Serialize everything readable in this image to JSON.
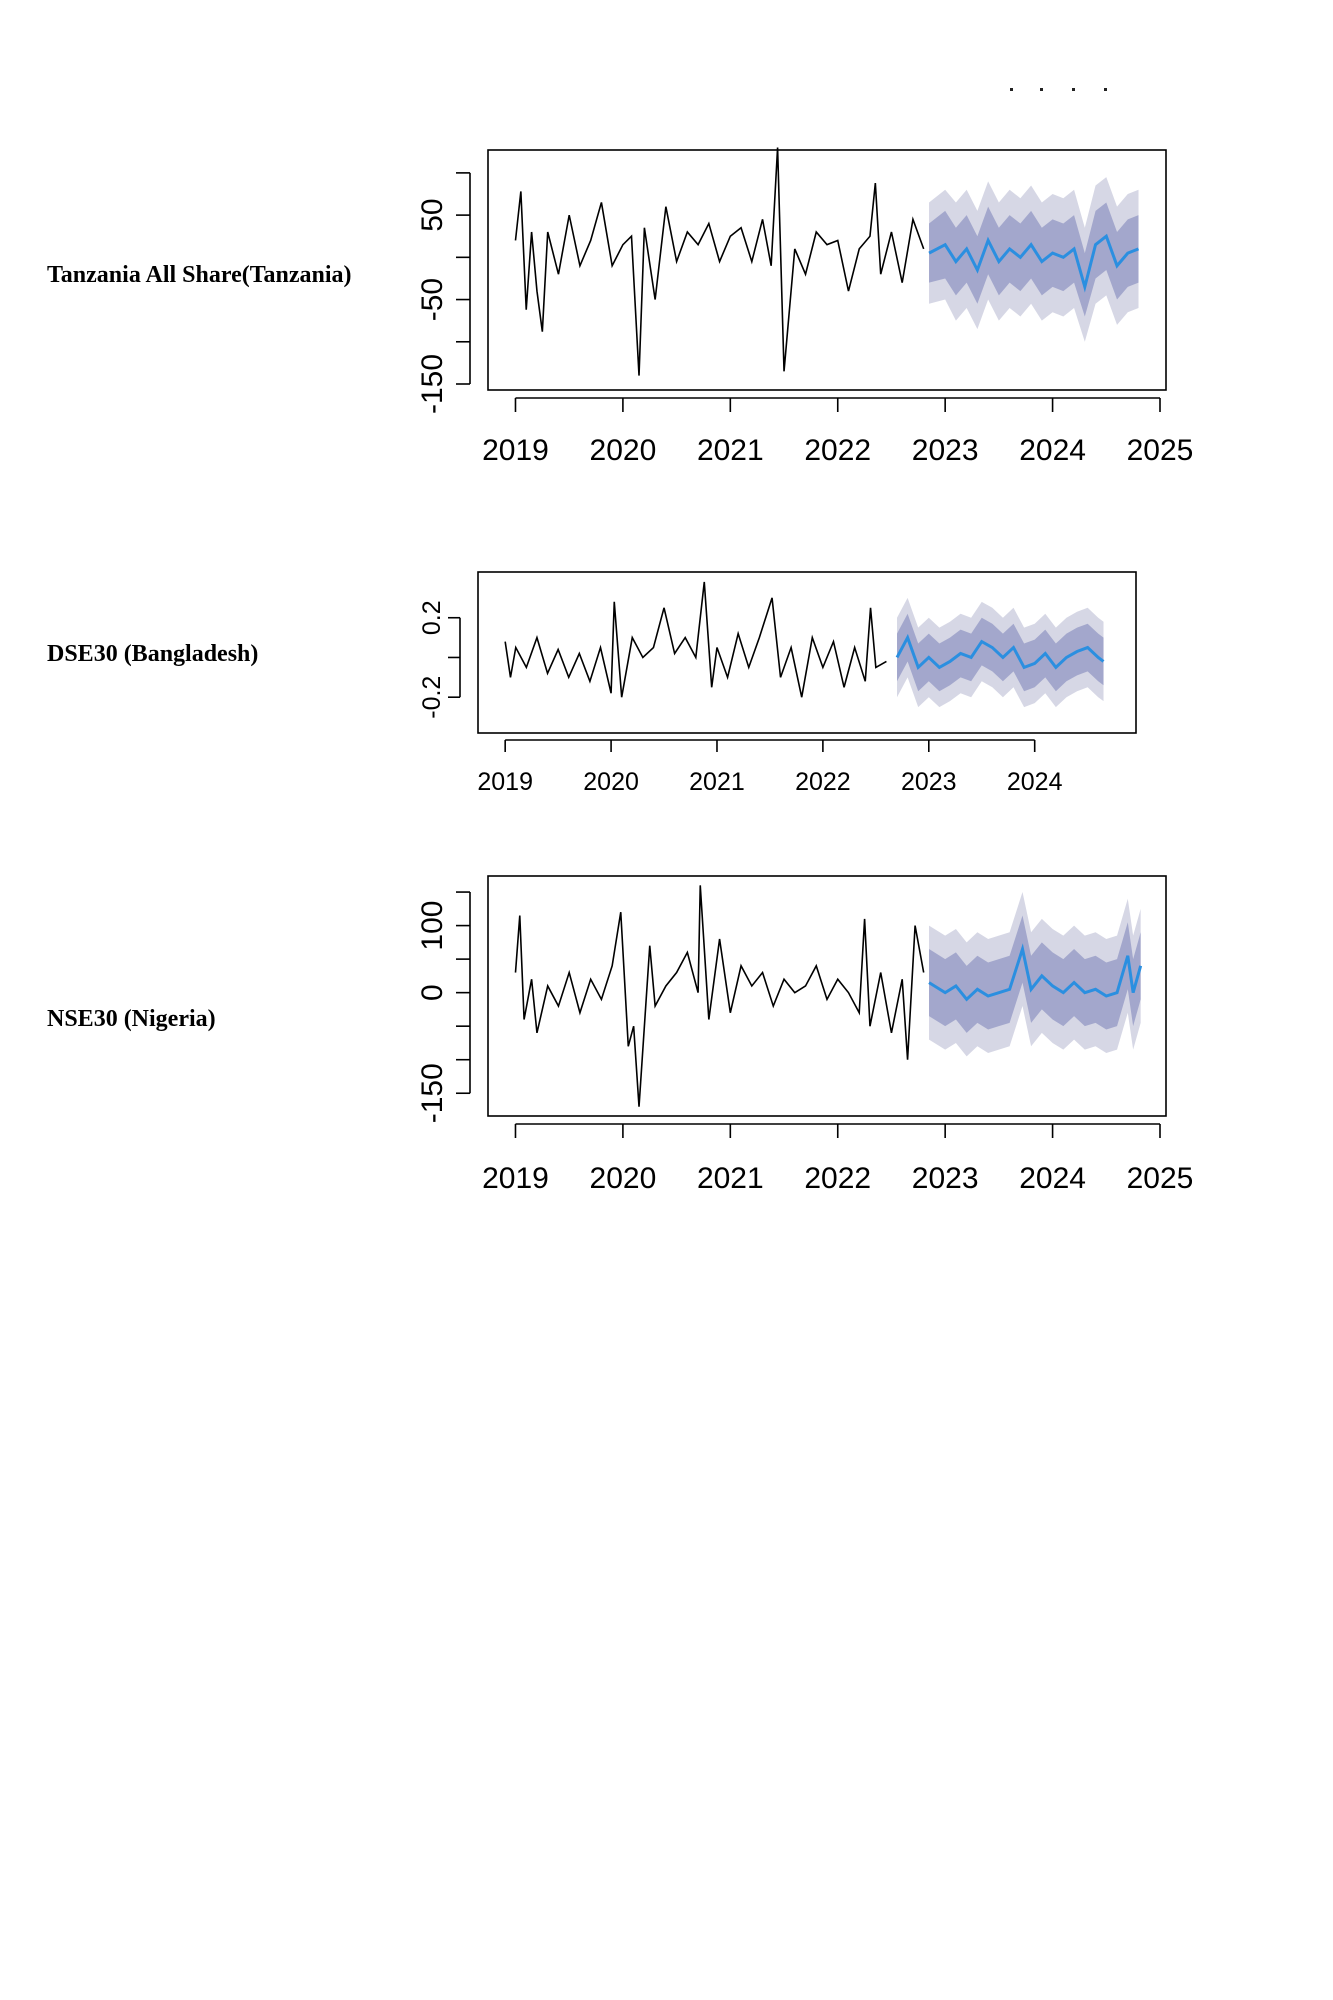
{
  "colors": {
    "history": "#000000",
    "forecast": "#2b8fe0",
    "band80": "#a3a7cc",
    "band95": "#d6d7e5"
  },
  "labels": {
    "tanzania": "Tanzania All Share(Tanzania)",
    "bangladesh": "DSE30 (Bangladesh)",
    "nigeria": "NSE30 (Nigeria)"
  },
  "chart_data": [
    {
      "type": "line",
      "title": "",
      "xlim": [
        2018.8,
        2025.0
      ],
      "ylim": [
        -150,
        120
      ],
      "yticks": [
        -150,
        -100,
        -50,
        0,
        50,
        100
      ],
      "ytick_labels": [
        "-150",
        "",
        "-50",
        "",
        "50",
        ""
      ],
      "xticks": [
        2019,
        2020,
        2021,
        2022,
        2023,
        2024,
        2025
      ],
      "xtick_labels": [
        "2019",
        "2020",
        "2021",
        "2022",
        "2023",
        "2024",
        "2025"
      ],
      "history": {
        "x": [
          2019.0,
          2019.05,
          2019.1,
          2019.15,
          2019.2,
          2019.25,
          2019.3,
          2019.35,
          2019.4,
          2019.5,
          2019.6,
          2019.7,
          2019.8,
          2019.9,
          2020.0,
          2020.08,
          2020.15,
          2020.2,
          2020.3,
          2020.4,
          2020.5,
          2020.6,
          2020.7,
          2020.8,
          2020.9,
          2021.0,
          2021.1,
          2021.2,
          2021.3,
          2021.38,
          2021.44,
          2021.5,
          2021.6,
          2021.7,
          2021.8,
          2021.9,
          2022.0,
          2022.1,
          2022.2,
          2022.3,
          2022.35,
          2022.4,
          2022.5,
          2022.6,
          2022.7,
          2022.8
        ],
        "y": [
          20,
          78,
          -62,
          30,
          -40,
          -88,
          30,
          5,
          -20,
          50,
          -10,
          20,
          65,
          -10,
          15,
          25,
          -140,
          35,
          -50,
          60,
          -5,
          30,
          15,
          40,
          -5,
          25,
          35,
          -5,
          45,
          -10,
          130,
          -135,
          10,
          -20,
          30,
          15,
          20,
          -40,
          10,
          25,
          88,
          -20,
          30,
          -30,
          45,
          10
        ]
      },
      "forecast": {
        "x": [
          2022.85,
          2023.0,
          2023.1,
          2023.2,
          2023.3,
          2023.4,
          2023.5,
          2023.6,
          2023.7,
          2023.8,
          2023.9,
          2024.0,
          2024.1,
          2024.2,
          2024.3,
          2024.4,
          2024.5,
          2024.6,
          2024.7,
          2024.8
        ],
        "mean": [
          5,
          15,
          -5,
          10,
          -15,
          20,
          -5,
          10,
          0,
          15,
          -5,
          5,
          0,
          10,
          -35,
          15,
          25,
          -10,
          5,
          10
        ],
        "lo80": [
          -30,
          -25,
          -45,
          -30,
          -55,
          -20,
          -45,
          -30,
          -40,
          -25,
          -45,
          -35,
          -40,
          -30,
          -70,
          -25,
          -15,
          -50,
          -35,
          -30
        ],
        "hi80": [
          40,
          55,
          35,
          50,
          25,
          60,
          35,
          50,
          40,
          55,
          35,
          45,
          40,
          50,
          5,
          55,
          65,
          30,
          45,
          50
        ],
        "lo95": [
          -55,
          -50,
          -75,
          -60,
          -85,
          -50,
          -75,
          -60,
          -70,
          -55,
          -75,
          -65,
          -70,
          -60,
          -100,
          -55,
          -45,
          -80,
          -65,
          -60
        ],
        "hi95": [
          65,
          80,
          65,
          80,
          55,
          90,
          65,
          80,
          70,
          85,
          65,
          75,
          70,
          80,
          35,
          85,
          95,
          60,
          75,
          80
        ]
      }
    },
    {
      "type": "line",
      "title": "",
      "xlim": [
        2018.8,
        2024.9
      ],
      "ylim": [
        -0.35,
        0.4
      ],
      "yticks": [
        -0.2,
        0.0,
        0.2
      ],
      "ytick_labels": [
        "-0.2",
        "",
        "0.2"
      ],
      "xticks": [
        2019,
        2020,
        2021,
        2022,
        2023,
        2024
      ],
      "xtick_labels": [
        "2019",
        "2020",
        "2021",
        "2022",
        "2023",
        "2024"
      ],
      "history": {
        "x": [
          2019.0,
          2019.05,
          2019.1,
          2019.2,
          2019.3,
          2019.4,
          2019.5,
          2019.6,
          2019.7,
          2019.8,
          2019.9,
          2020.0,
          2020.03,
          2020.1,
          2020.2,
          2020.3,
          2020.4,
          2020.5,
          2020.6,
          2020.7,
          2020.8,
          2020.88,
          2020.95,
          2021.0,
          2021.1,
          2021.2,
          2021.3,
          2021.4,
          2021.52,
          2021.6,
          2021.7,
          2021.8,
          2021.9,
          2022.0,
          2022.1,
          2022.2,
          2022.3,
          2022.4,
          2022.45,
          2022.5,
          2022.6
        ],
        "y": [
          0.08,
          -0.1,
          0.05,
          -0.05,
          0.1,
          -0.08,
          0.04,
          -0.1,
          0.02,
          -0.12,
          0.05,
          -0.18,
          0.28,
          -0.2,
          0.1,
          0.0,
          0.05,
          0.25,
          0.02,
          0.1,
          0.0,
          0.38,
          -0.15,
          0.05,
          -0.1,
          0.12,
          -0.05,
          0.1,
          0.3,
          -0.1,
          0.05,
          -0.2,
          0.1,
          -0.05,
          0.08,
          -0.15,
          0.05,
          -0.12,
          0.25,
          -0.05,
          -0.02
        ]
      },
      "forecast": {
        "x": [
          2022.7,
          2022.8,
          2022.9,
          2023.0,
          2023.1,
          2023.2,
          2023.3,
          2023.4,
          2023.5,
          2023.6,
          2023.7,
          2023.8,
          2023.9,
          2024.0,
          2024.1,
          2024.2,
          2024.3,
          2024.4,
          2024.5,
          2024.6,
          2024.65
        ],
        "mean": [
          0.0,
          0.1,
          -0.05,
          0.0,
          -0.05,
          -0.02,
          0.02,
          0.0,
          0.08,
          0.05,
          0.0,
          0.05,
          -0.05,
          -0.03,
          0.02,
          -0.05,
          0.0,
          0.03,
          0.05,
          0.0,
          -0.02
        ],
        "lo80": [
          -0.12,
          -0.02,
          -0.17,
          -0.12,
          -0.17,
          -0.14,
          -0.1,
          -0.12,
          -0.04,
          -0.07,
          -0.12,
          -0.07,
          -0.17,
          -0.15,
          -0.1,
          -0.17,
          -0.12,
          -0.09,
          -0.07,
          -0.12,
          -0.14
        ],
        "hi80": [
          0.12,
          0.22,
          0.07,
          0.12,
          0.07,
          0.1,
          0.14,
          0.12,
          0.2,
          0.17,
          0.12,
          0.17,
          0.07,
          0.09,
          0.14,
          0.07,
          0.12,
          0.15,
          0.17,
          0.12,
          0.1
        ],
        "lo95": [
          -0.2,
          -0.1,
          -0.25,
          -0.2,
          -0.25,
          -0.22,
          -0.18,
          -0.2,
          -0.12,
          -0.15,
          -0.2,
          -0.15,
          -0.25,
          -0.23,
          -0.18,
          -0.25,
          -0.2,
          -0.17,
          -0.15,
          -0.2,
          -0.22
        ],
        "hi95": [
          0.2,
          0.3,
          0.15,
          0.2,
          0.15,
          0.18,
          0.22,
          0.2,
          0.28,
          0.25,
          0.2,
          0.25,
          0.15,
          0.17,
          0.22,
          0.15,
          0.2,
          0.23,
          0.25,
          0.2,
          0.18
        ]
      }
    },
    {
      "type": "line",
      "title": "",
      "xlim": [
        2018.8,
        2025.0
      ],
      "ylim": [
        -175,
        165
      ],
      "yticks": [
        -150,
        -100,
        -50,
        0,
        50,
        100,
        150
      ],
      "ytick_labels": [
        "-150",
        "",
        "",
        "0",
        "",
        "100",
        ""
      ],
      "xticks": [
        2019,
        2020,
        2021,
        2022,
        2023,
        2024,
        2025
      ],
      "xtick_labels": [
        "2019",
        "2020",
        "2021",
        "2022",
        "2023",
        "2024",
        "2025"
      ],
      "history": {
        "x": [
          2019.0,
          2019.04,
          2019.08,
          2019.15,
          2019.2,
          2019.3,
          2019.4,
          2019.5,
          2019.6,
          2019.7,
          2019.8,
          2019.9,
          2019.98,
          2020.05,
          2020.1,
          2020.15,
          2020.25,
          2020.3,
          2020.4,
          2020.5,
          2020.6,
          2020.7,
          2020.72,
          2020.8,
          2020.9,
          2021.0,
          2021.1,
          2021.2,
          2021.3,
          2021.4,
          2021.5,
          2021.6,
          2021.7,
          2021.8,
          2021.9,
          2022.0,
          2022.1,
          2022.2,
          2022.25,
          2022.3,
          2022.4,
          2022.5,
          2022.6,
          2022.65,
          2022.72,
          2022.8
        ],
        "y": [
          30,
          115,
          -40,
          20,
          -60,
          10,
          -20,
          30,
          -30,
          20,
          -10,
          40,
          120,
          -80,
          -50,
          -170,
          70,
          -20,
          10,
          30,
          60,
          0,
          160,
          -40,
          80,
          -30,
          40,
          10,
          30,
          -20,
          20,
          0,
          10,
          40,
          -10,
          20,
          0,
          -30,
          110,
          -50,
          30,
          -60,
          20,
          -100,
          100,
          30
        ]
      },
      "forecast": {
        "x": [
          2022.85,
          2023.0,
          2023.1,
          2023.2,
          2023.3,
          2023.4,
          2023.5,
          2023.6,
          2023.72,
          2023.8,
          2023.9,
          2024.0,
          2024.1,
          2024.2,
          2024.3,
          2024.4,
          2024.5,
          2024.6,
          2024.7,
          2024.75,
          2024.82
        ],
        "mean": [
          15,
          0,
          10,
          -10,
          5,
          -5,
          0,
          5,
          65,
          5,
          25,
          10,
          0,
          15,
          0,
          5,
          -5,
          0,
          55,
          0,
          40
        ],
        "lo80": [
          -35,
          -50,
          -40,
          -60,
          -45,
          -55,
          -50,
          -45,
          15,
          -45,
          -25,
          -40,
          -50,
          -35,
          -50,
          -45,
          -55,
          -50,
          5,
          -50,
          -10
        ],
        "hi80": [
          65,
          50,
          60,
          40,
          55,
          45,
          50,
          55,
          115,
          55,
          75,
          60,
          50,
          65,
          50,
          55,
          45,
          50,
          105,
          50,
          90
        ],
        "lo95": [
          -70,
          -85,
          -75,
          -95,
          -80,
          -90,
          -85,
          -80,
          -20,
          -80,
          -60,
          -75,
          -85,
          -70,
          -85,
          -80,
          -90,
          -85,
          -30,
          -85,
          -45
        ],
        "hi95": [
          100,
          85,
          95,
          75,
          90,
          80,
          85,
          90,
          150,
          90,
          110,
          95,
          85,
          100,
          85,
          90,
          80,
          85,
          140,
          85,
          125
        ]
      }
    }
  ]
}
